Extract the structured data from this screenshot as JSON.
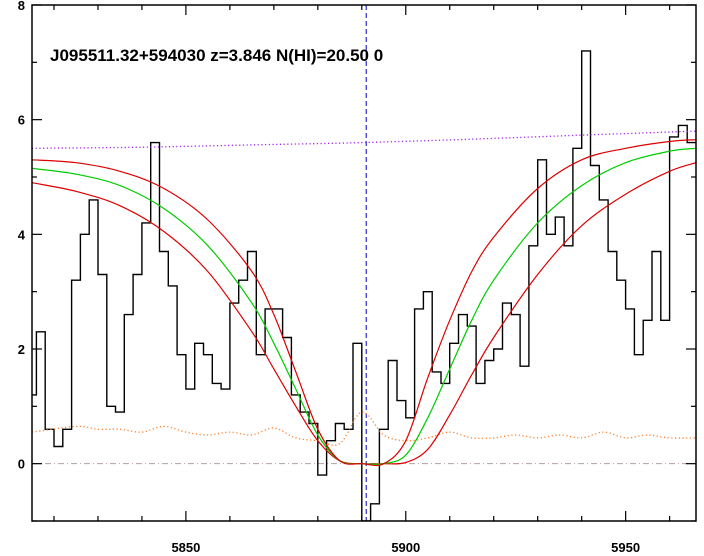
{
  "chart_data": {
    "type": "line",
    "title": "J095511.32+594030 z=3.846 N(HI)=20.50 0",
    "xlabel": "",
    "ylabel": "",
    "xlim": [
      5815,
      5966
    ],
    "ylim": [
      -1,
      8
    ],
    "x_ticks": [
      5850,
      5900,
      5950
    ],
    "y_ticks": [
      0,
      2,
      4,
      6,
      8
    ],
    "grid": false,
    "marker_x": 5891,
    "colors": {
      "flux": "#000000",
      "error": "#ff7f24",
      "continuum": "#a020f0",
      "fit": "#00cc00",
      "fit_bounds": "#dd0000",
      "marker": "#0000cc",
      "zero_line": "#b0a0a0"
    },
    "series": [
      {
        "style": "histogram",
        "color_key": "flux",
        "x": [
          5815,
          5817,
          5819,
          5821,
          5823,
          5825,
          5827,
          5829,
          5831,
          5833,
          5835,
          5837,
          5839,
          5841,
          5843,
          5845,
          5847,
          5849,
          5851,
          5853,
          5855,
          5857,
          5859,
          5861,
          5863,
          5865,
          5867,
          5869,
          5871,
          5873,
          5875,
          5877,
          5879,
          5881,
          5883,
          5885,
          5887,
          5889,
          5891,
          5893,
          5895,
          5897,
          5899,
          5901,
          5903,
          5905,
          5907,
          5909,
          5911,
          5913,
          5915,
          5917,
          5919,
          5921,
          5923,
          5925,
          5927,
          5929,
          5931,
          5933,
          5935,
          5937,
          5939,
          5941,
          5943,
          5945,
          5947,
          5949,
          5951,
          5953,
          5955,
          5957,
          5959,
          5961,
          5963,
          5965
        ],
        "y": [
          1.2,
          2.3,
          0.6,
          0.3,
          0.6,
          3.2,
          4.0,
          4.6,
          3.3,
          1.0,
          0.9,
          2.6,
          3.3,
          4.2,
          5.6,
          3.7,
          3.1,
          1.9,
          1.3,
          2.1,
          1.9,
          1.4,
          1.3,
          2.8,
          3.2,
          3.7,
          1.9,
          2.7,
          2.7,
          2.2,
          1.2,
          0.9,
          0.7,
          -0.2,
          0.4,
          0.7,
          0.6,
          2.1,
          -1.0,
          -0.7,
          0.6,
          1.8,
          1.1,
          0.8,
          2.7,
          3.0,
          1.6,
          1.4,
          2.1,
          2.6,
          2.4,
          1.4,
          1.8,
          2.0,
          2.8,
          2.6,
          1.7,
          3.8,
          5.3,
          4.0,
          4.3,
          3.8,
          5.5,
          7.2,
          5.2,
          4.6,
          3.7,
          3.2,
          2.7,
          1.9,
          2.5,
          3.7,
          2.5,
          5.7,
          5.9,
          5.6
        ]
      },
      {
        "style": "dotted",
        "color_key": "continuum",
        "x": [
          5815,
          5840,
          5865,
          5890,
          5915,
          5940,
          5966
        ],
        "y": [
          5.5,
          5.52,
          5.56,
          5.6,
          5.66,
          5.73,
          5.8
        ]
      },
      {
        "style": "dotted",
        "color_key": "error",
        "x": [
          5815,
          5825,
          5830,
          5835,
          5840,
          5845,
          5850,
          5855,
          5860,
          5865,
          5870,
          5875,
          5880,
          5885,
          5890,
          5895,
          5900,
          5905,
          5910,
          5915,
          5920,
          5925,
          5930,
          5935,
          5940,
          5945,
          5950,
          5955,
          5960,
          5966
        ],
        "y": [
          0.55,
          0.65,
          0.6,
          0.6,
          0.55,
          0.65,
          0.55,
          0.5,
          0.55,
          0.5,
          0.62,
          0.45,
          0.4,
          0.35,
          0.9,
          0.5,
          0.4,
          0.45,
          0.55,
          0.45,
          0.45,
          0.5,
          0.45,
          0.5,
          0.45,
          0.55,
          0.45,
          0.5,
          0.45,
          0.45
        ]
      },
      {
        "style": "line",
        "color_key": "fit_bounds",
        "x": [
          5815,
          5825,
          5835,
          5845,
          5855,
          5865,
          5870,
          5875,
          5880,
          5885,
          5890,
          5895,
          5900,
          5905,
          5910,
          5915,
          5920,
          5930,
          5940,
          5950,
          5960,
          5966
        ],
        "y": [
          4.9,
          4.75,
          4.5,
          4.05,
          3.35,
          2.3,
          1.65,
          1.0,
          0.4,
          0.05,
          0.0,
          0.0,
          0.02,
          0.25,
          0.85,
          1.55,
          2.2,
          3.3,
          4.15,
          4.7,
          5.1,
          5.25
        ]
      },
      {
        "style": "line",
        "color_key": "fit",
        "x": [
          5815,
          5825,
          5835,
          5845,
          5855,
          5865,
          5870,
          5875,
          5880,
          5885,
          5890,
          5895,
          5900,
          5905,
          5910,
          5915,
          5920,
          5930,
          5940,
          5950,
          5960,
          5966
        ],
        "y": [
          5.15,
          5.05,
          4.85,
          4.45,
          3.8,
          2.8,
          2.1,
          1.3,
          0.5,
          0.05,
          0.0,
          0.0,
          0.15,
          0.8,
          1.65,
          2.5,
          3.2,
          4.2,
          4.85,
          5.25,
          5.45,
          5.5
        ]
      },
      {
        "style": "line",
        "color_key": "fit_bounds",
        "x": [
          5815,
          5825,
          5835,
          5845,
          5855,
          5865,
          5870,
          5875,
          5880,
          5885,
          5890,
          5895,
          5900,
          5905,
          5910,
          5915,
          5920,
          5930,
          5940,
          5950,
          5960,
          5966
        ],
        "y": [
          5.3,
          5.25,
          5.1,
          4.8,
          4.25,
          3.35,
          2.6,
          1.6,
          0.6,
          0.05,
          0.0,
          0.0,
          0.4,
          1.5,
          2.5,
          3.35,
          3.95,
          4.8,
          5.3,
          5.5,
          5.62,
          5.65
        ]
      }
    ]
  }
}
